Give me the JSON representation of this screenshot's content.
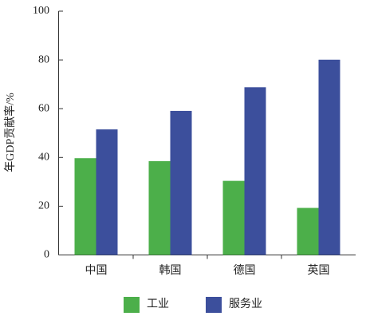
{
  "chart_data": {
    "type": "bar",
    "y_label": "年GDP贡献率/%",
    "categories": [
      "中国",
      "韩国",
      "德国",
      "英国"
    ],
    "series": [
      {
        "name": "工业",
        "color": "#4caf4a",
        "values": [
          39.7,
          38.5,
          30.4,
          19.3
        ]
      },
      {
        "name": "服务业",
        "color": "#3c4f9c",
        "values": [
          51.5,
          59.1,
          68.8,
          80.1
        ]
      }
    ],
    "ylim": [
      0,
      100
    ],
    "yticks": [
      0,
      20,
      40,
      60,
      80,
      100
    ],
    "grid": false,
    "legend": "bottom"
  }
}
